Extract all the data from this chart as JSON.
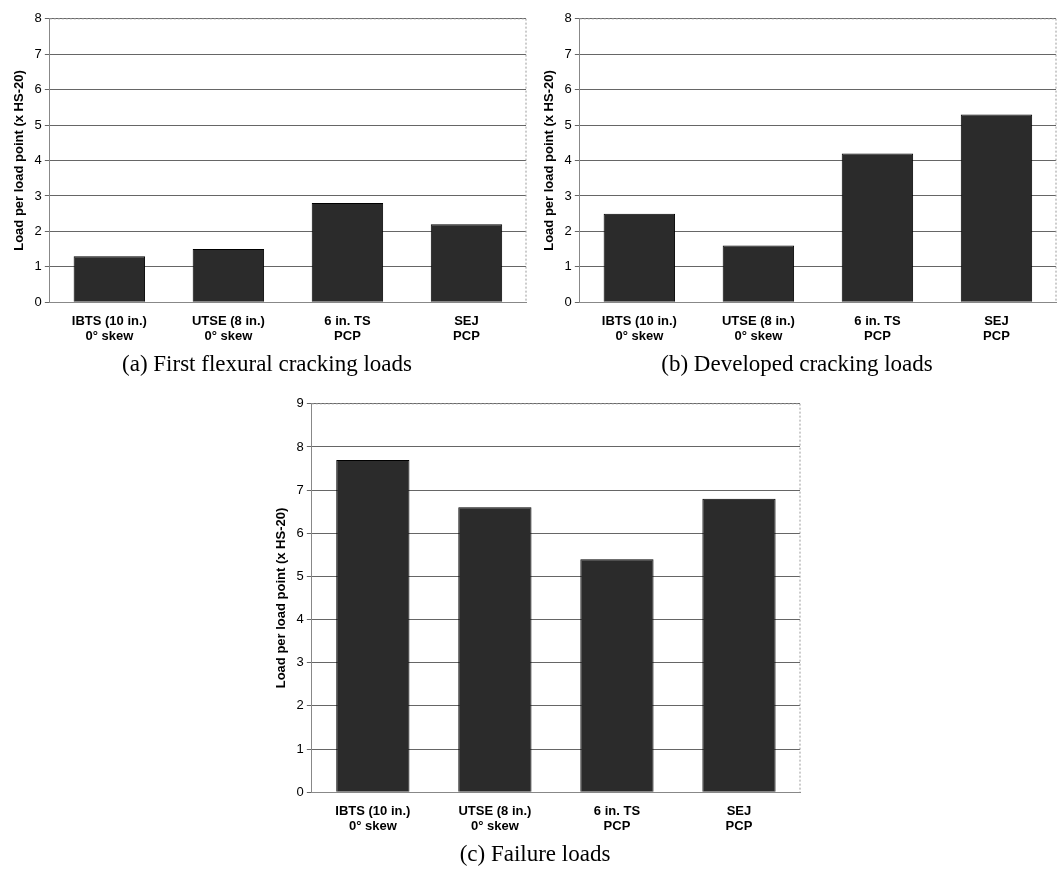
{
  "chart_data": [
    {
      "type": "bar",
      "title": "(a) First flexural cracking loads",
      "ylabel": "Load per load point (x HS-20)",
      "categories": [
        "IBTS (10 in.)\n0° skew",
        "UTSE (8 in.)\n0° skew",
        "6 in. TS\nPCP",
        "SEJ\nPCP"
      ],
      "values": [
        1.3,
        1.5,
        2.8,
        2.2
      ],
      "color": "#2b2b2b",
      "ylim": [
        0,
        8
      ],
      "yticks": [
        0,
        1,
        2,
        3,
        4,
        5,
        6,
        7,
        8
      ],
      "grid": "y",
      "legend": false
    },
    {
      "type": "bar",
      "title": "(b) Developed cracking loads",
      "ylabel": "Load per load point (x HS-20)",
      "categories": [
        "IBTS (10 in.)\n0° skew",
        "UTSE (8 in.)\n0° skew",
        "6 in. TS\nPCP",
        "SEJ\nPCP"
      ],
      "values": [
        2.5,
        1.6,
        4.2,
        5.3
      ],
      "color": "#2b2b2b",
      "ylim": [
        0,
        8
      ],
      "yticks": [
        0,
        1,
        2,
        3,
        4,
        5,
        6,
        7,
        8
      ],
      "grid": "y",
      "legend": false
    },
    {
      "type": "bar",
      "title": "(c) Failure loads",
      "ylabel": "Load per load point (x HS-20)",
      "categories": [
        "IBTS (10 in.)\n0° skew",
        "UTSE (8 in.)\n0° skew",
        "6 in. TS\nPCP",
        "SEJ\nPCP"
      ],
      "values": [
        7.7,
        6.6,
        5.4,
        6.8
      ],
      "color": "#2b2b2b",
      "ylim": [
        0,
        9
      ],
      "yticks": [
        0,
        1,
        2,
        3,
        4,
        5,
        6,
        7,
        8,
        9
      ],
      "grid": "y",
      "legend": false
    }
  ]
}
